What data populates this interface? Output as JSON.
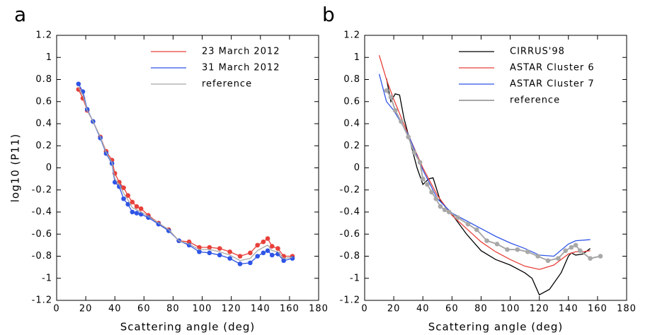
{
  "chart_data": [
    {
      "type": "line",
      "panel_label": "a",
      "xlabel": "Scattering angle (deg)",
      "ylabel": "log10 (P11)",
      "xlim": [
        0,
        180
      ],
      "ylim": [
        -1.2,
        1.2
      ],
      "xticks": [
        0,
        20,
        40,
        60,
        80,
        100,
        120,
        140,
        160,
        180
      ],
      "yticks": [
        -1.2,
        -1,
        -0.8,
        -0.6,
        -0.4,
        -0.2,
        0,
        0.2,
        0.4,
        0.6,
        0.8,
        1,
        1.2
      ],
      "legend": "top right",
      "series": [
        {
          "name": "23 March 2012",
          "color": "#e8403a",
          "markers": true,
          "x": [
            15,
            18,
            21,
            25,
            30,
            34,
            38,
            40,
            43,
            46,
            49,
            52,
            55,
            58,
            63,
            70,
            77,
            84,
            91,
            98,
            105,
            112,
            119,
            126,
            133,
            138,
            142,
            145,
            148,
            152,
            156,
            162
          ],
          "values": [
            0.71,
            0.63,
            0.52,
            0.42,
            0.28,
            0.15,
            0.07,
            -0.05,
            -0.13,
            -0.18,
            -0.25,
            -0.31,
            -0.35,
            -0.37,
            -0.43,
            -0.5,
            -0.56,
            -0.66,
            -0.67,
            -0.72,
            -0.72,
            -0.73,
            -0.76,
            -0.8,
            -0.77,
            -0.7,
            -0.67,
            -0.64,
            -0.71,
            -0.73,
            -0.8,
            -0.8
          ]
        },
        {
          "name": "31 March 2012",
          "color": "#2f55e6",
          "markers": true,
          "x": [
            15,
            18,
            21,
            25,
            30,
            34,
            38,
            40,
            43,
            46,
            49,
            52,
            55,
            58,
            63,
            70,
            77,
            84,
            91,
            98,
            105,
            112,
            119,
            126,
            133,
            138,
            142,
            145,
            148,
            152,
            156,
            162
          ],
          "values": [
            0.76,
            0.69,
            0.53,
            0.42,
            0.27,
            0.13,
            0.04,
            -0.13,
            -0.17,
            -0.28,
            -0.33,
            -0.4,
            -0.41,
            -0.42,
            -0.45,
            -0.51,
            -0.57,
            -0.66,
            -0.7,
            -0.76,
            -0.77,
            -0.79,
            -0.82,
            -0.87,
            -0.86,
            -0.8,
            -0.77,
            -0.75,
            -0.79,
            -0.78,
            -0.84,
            -0.82
          ]
        },
        {
          "name": "reference",
          "color": "#a8a8a8",
          "markers": false,
          "x": [
            15,
            18,
            21,
            25,
            30,
            34,
            38,
            40,
            43,
            46,
            49,
            52,
            55,
            58,
            63,
            70,
            77,
            84,
            91,
            98,
            105,
            112,
            119,
            126,
            133,
            138,
            142,
            145,
            148,
            152,
            156,
            162
          ],
          "values": [
            0.73,
            0.66,
            0.52,
            0.42,
            0.28,
            0.14,
            0.05,
            -0.1,
            -0.15,
            -0.23,
            -0.29,
            -0.36,
            -0.38,
            -0.4,
            -0.44,
            -0.5,
            -0.56,
            -0.66,
            -0.69,
            -0.74,
            -0.74,
            -0.76,
            -0.79,
            -0.84,
            -0.82,
            -0.75,
            -0.72,
            -0.7,
            -0.75,
            -0.76,
            -0.82,
            -0.81
          ]
        }
      ]
    },
    {
      "type": "line",
      "panel_label": "b",
      "xlabel": "Scattering angle (deg)",
      "xlim": [
        0,
        180
      ],
      "ylim": [
        -1.2,
        1.2
      ],
      "xticks": [
        0,
        20,
        40,
        60,
        80,
        100,
        120,
        140,
        160,
        180
      ],
      "yticks": [
        -1.2,
        -1,
        -0.8,
        -0.6,
        -0.4,
        -0.2,
        0,
        0.2,
        0.4,
        0.6,
        0.8,
        1,
        1.2
      ],
      "legend": "top right",
      "series": [
        {
          "name": "CIRRUS'98",
          "color": "#000000",
          "markers": false,
          "x": [
            15,
            18,
            21,
            24,
            27,
            32,
            36,
            40,
            44,
            47,
            52,
            60,
            70,
            80,
            90,
            100,
            110,
            115,
            120,
            127,
            135,
            140,
            142,
            145,
            150,
            155
          ],
          "values": [
            0.81,
            0.6,
            0.67,
            0.66,
            0.45,
            0.2,
            0.0,
            -0.15,
            -0.1,
            -0.09,
            -0.3,
            -0.42,
            -0.6,
            -0.75,
            -0.83,
            -0.88,
            -0.95,
            -1.0,
            -1.15,
            -1.1,
            -0.95,
            -0.8,
            -0.77,
            -0.79,
            -0.78,
            -0.73
          ]
        },
        {
          "name": "ASTAR Cluster 6",
          "color": "#e8403a",
          "markers": false,
          "x": [
            10,
            15,
            20,
            30,
            40,
            50,
            60,
            70,
            80,
            90,
            100,
            110,
            120,
            130,
            140,
            145,
            150,
            155
          ],
          "values": [
            1.02,
            0.8,
            0.62,
            0.3,
            0.0,
            -0.25,
            -0.43,
            -0.55,
            -0.67,
            -0.76,
            -0.83,
            -0.89,
            -0.92,
            -0.88,
            -0.78,
            -0.76,
            -0.76,
            -0.75
          ]
        },
        {
          "name": "ASTAR Cluster 7",
          "color": "#2f55e6",
          "markers": false,
          "x": [
            10,
            15,
            20,
            30,
            40,
            50,
            60,
            70,
            80,
            90,
            100,
            110,
            120,
            130,
            140,
            145,
            155
          ],
          "values": [
            0.85,
            0.6,
            0.52,
            0.3,
            -0.02,
            -0.28,
            -0.41,
            -0.48,
            -0.55,
            -0.62,
            -0.68,
            -0.73,
            -0.79,
            -0.8,
            -0.69,
            -0.66,
            -0.65
          ]
        },
        {
          "name": "reference",
          "color": "#a8a8a8",
          "markers": true,
          "x": [
            15,
            18,
            21,
            25,
            30,
            34,
            38,
            40,
            43,
            46,
            49,
            52,
            55,
            58,
            64,
            71,
            77,
            84,
            91,
            98,
            105,
            112,
            119,
            126,
            133,
            138,
            142,
            145,
            148,
            155,
            162
          ],
          "values": [
            0.7,
            0.64,
            0.52,
            0.42,
            0.28,
            0.14,
            0.05,
            -0.1,
            -0.15,
            -0.22,
            -0.28,
            -0.35,
            -0.38,
            -0.4,
            -0.45,
            -0.51,
            -0.56,
            -0.66,
            -0.69,
            -0.74,
            -0.74,
            -0.76,
            -0.8,
            -0.84,
            -0.82,
            -0.75,
            -0.72,
            -0.7,
            -0.75,
            -0.82,
            -0.8
          ]
        }
      ]
    }
  ]
}
